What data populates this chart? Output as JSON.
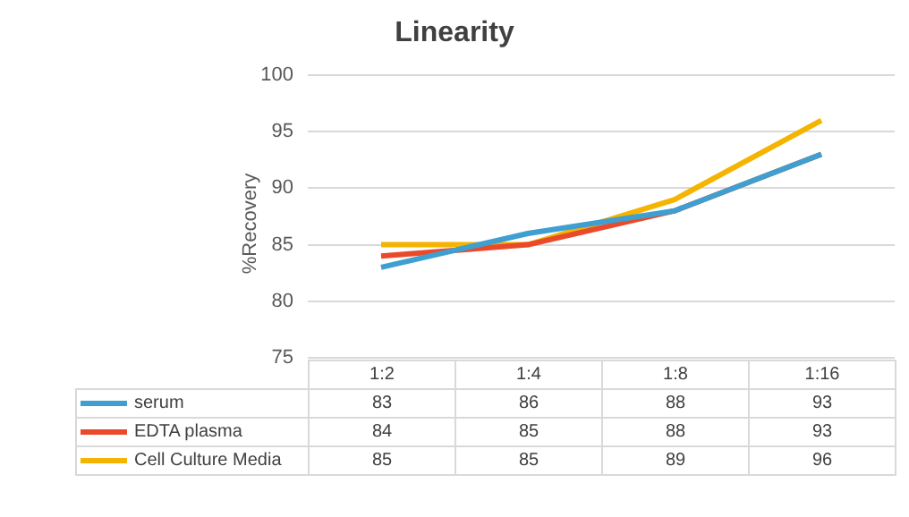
{
  "chart_data": {
    "type": "line",
    "title": "Linearity",
    "ylabel": "%Recovery",
    "categories": [
      "1:2",
      "1:4",
      "1:8",
      "1:16"
    ],
    "series": [
      {
        "name": "serum",
        "color": "#3e9fd0",
        "values": [
          83,
          86,
          88,
          93
        ]
      },
      {
        "name": "EDTA plasma",
        "color": "#ea4a2a",
        "values": [
          84,
          85,
          88,
          93
        ]
      },
      {
        "name": "Cell Culture Media",
        "color": "#f4b400",
        "values": [
          85,
          85,
          89,
          96
        ]
      }
    ],
    "ylim": [
      75,
      100
    ],
    "yticks": [
      75,
      80,
      85,
      90,
      95,
      100
    ],
    "grid": "y",
    "data_labels": true,
    "marker": "none",
    "line_style": "solid",
    "legend": "bottom"
  }
}
